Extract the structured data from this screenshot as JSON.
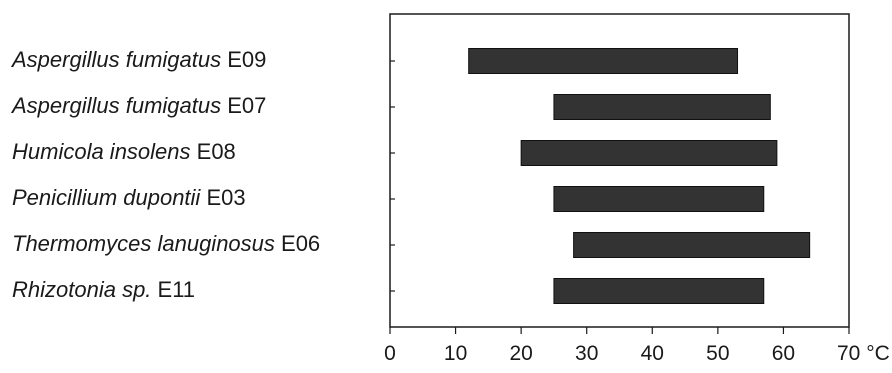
{
  "chart_data": {
    "type": "bar",
    "orientation": "horizontal",
    "range_bars": true,
    "categories": [
      {
        "name": "Aspergillus fumigatus",
        "code": "E09"
      },
      {
        "name": "Aspergillus fumigatus",
        "code": "E07"
      },
      {
        "name": "Humicola insolens",
        "code": "E08"
      },
      {
        "name": "Penicillium dupontii",
        "code": "E03"
      },
      {
        "name": "Thermomyces lanuginosus",
        "code": "E06"
      },
      {
        "name": "Rhizotonia sp.",
        "code": "E11"
      }
    ],
    "ranges": [
      [
        12,
        53
      ],
      [
        25,
        58
      ],
      [
        20,
        59
      ],
      [
        25,
        57
      ],
      [
        28,
        64
      ],
      [
        25,
        57
      ]
    ],
    "xlim": [
      0,
      70
    ],
    "xticks": [
      0,
      10,
      20,
      30,
      40,
      50,
      60,
      70
    ],
    "tick_labels": [
      "0",
      "10",
      "20",
      "30",
      "40",
      "50",
      "60",
      "70 °C"
    ],
    "grid": false,
    "bar_color": "#333333"
  }
}
